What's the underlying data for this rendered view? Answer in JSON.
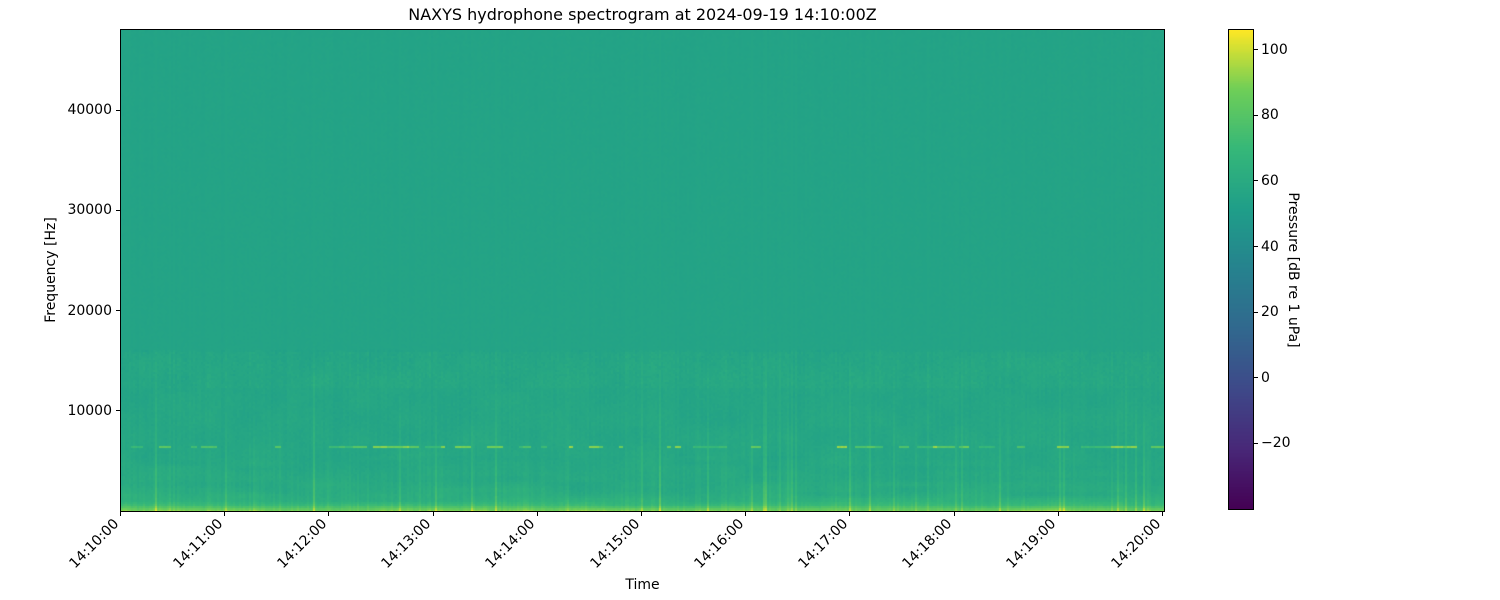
{
  "figure": {
    "background": "#ffffff",
    "spine_color": "#000000",
    "text_color": "#000000"
  },
  "chart_data": {
    "type": "heatmap",
    "subtype": "spectrogram",
    "title": "NAXYS hydrophone spectrogram at 2024-09-19 14:10:00Z",
    "xlabel": "Time",
    "ylabel": "Frequency [Hz]",
    "x_tick_labels": [
      "14:10:00",
      "14:11:00",
      "14:12:00",
      "14:13:00",
      "14:14:00",
      "14:15:00",
      "14:16:00",
      "14:17:00",
      "14:18:00",
      "14:19:00",
      "14:20:00"
    ],
    "x_tick_rotation_deg": 45,
    "x_range": {
      "start": "14:10:00",
      "end": "14:20:00",
      "duration_seconds": 600
    },
    "y_ticks_hz": [
      10000,
      20000,
      30000,
      40000
    ],
    "ylim_hz": [
      0,
      48000
    ],
    "grid": false,
    "colorbar": {
      "label": "Pressure [dB re 1 uPa]",
      "ticks": [
        100,
        80,
        60,
        40,
        20,
        0,
        -20
      ],
      "vmin": -40,
      "vmax": 106,
      "colormap": "viridis",
      "viridis_stops": [
        [
          0.0,
          "#440154"
        ],
        [
          0.125,
          "#482878"
        ],
        [
          0.25,
          "#3e4989"
        ],
        [
          0.375,
          "#31688e"
        ],
        [
          0.5,
          "#26828e"
        ],
        [
          0.625,
          "#1f9e89"
        ],
        [
          0.75,
          "#35b779"
        ],
        [
          0.875,
          "#6ece58"
        ],
        [
          1.0,
          "#fde725"
        ]
      ]
    },
    "level_profile_db": [
      [
        0,
        88
      ],
      [
        150,
        84
      ],
      [
        350,
        78
      ],
      [
        600,
        70
      ],
      [
        1000,
        64
      ],
      [
        1800,
        60.5
      ],
      [
        3000,
        58.5
      ],
      [
        6000,
        57.5
      ],
      [
        9000,
        56.8
      ],
      [
        12500,
        56.5
      ],
      [
        14500,
        56.2
      ],
      [
        16000,
        55.2
      ],
      [
        48000,
        54.9
      ]
    ],
    "features": {
      "background_level_db": 55,
      "tonal_line": {
        "freq_hz": 6400,
        "bandwidth_hz": 260,
        "level_db_range": [
          68,
          95
        ],
        "pattern": "intermittent-dashes"
      },
      "surface_band": {
        "freq_hz_max": 600,
        "level_db_range": [
          68,
          90
        ],
        "description": "bright yellow-green band along bottom edge"
      },
      "speckle_band": {
        "freq_hz_range": [
          12200,
          15800
        ],
        "boost_db_range": [
          0,
          3
        ]
      },
      "broadband_transients": {
        "description": "vertical striations strongest below ~15 kHz",
        "boost_db_range": [
          2,
          18
        ]
      }
    }
  }
}
